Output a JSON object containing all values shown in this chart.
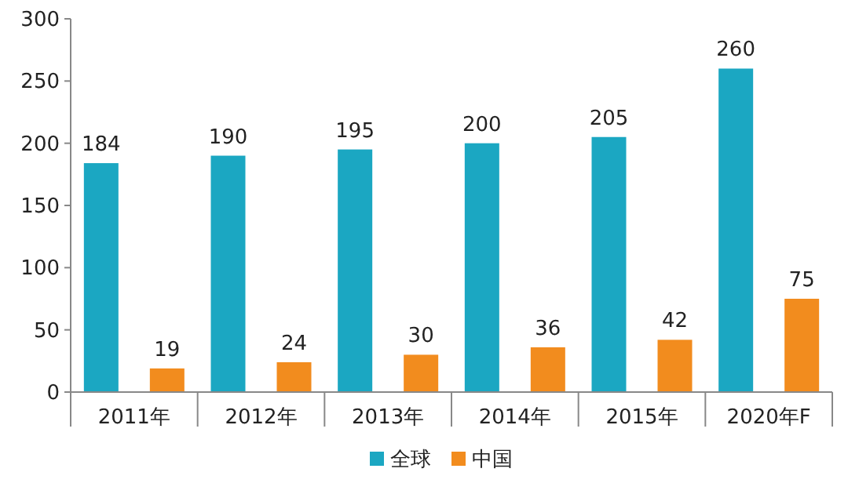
{
  "chart_data": {
    "type": "bar",
    "categories": [
      "2011年",
      "2012年",
      "2013年",
      "2014年",
      "2015年",
      "2020年F"
    ],
    "series": [
      {
        "name": "全球",
        "color": "#1ba7c2",
        "values": [
          184,
          190,
          195,
          200,
          205,
          260
        ]
      },
      {
        "name": "中国",
        "color": "#f28c1e",
        "values": [
          19,
          24,
          30,
          36,
          42,
          75
        ]
      }
    ],
    "ylim": [
      0,
      300
    ],
    "yticks": [
      0,
      50,
      100,
      150,
      200,
      250,
      300
    ],
    "data_labels": true,
    "legend": "bottom",
    "grid": false
  }
}
